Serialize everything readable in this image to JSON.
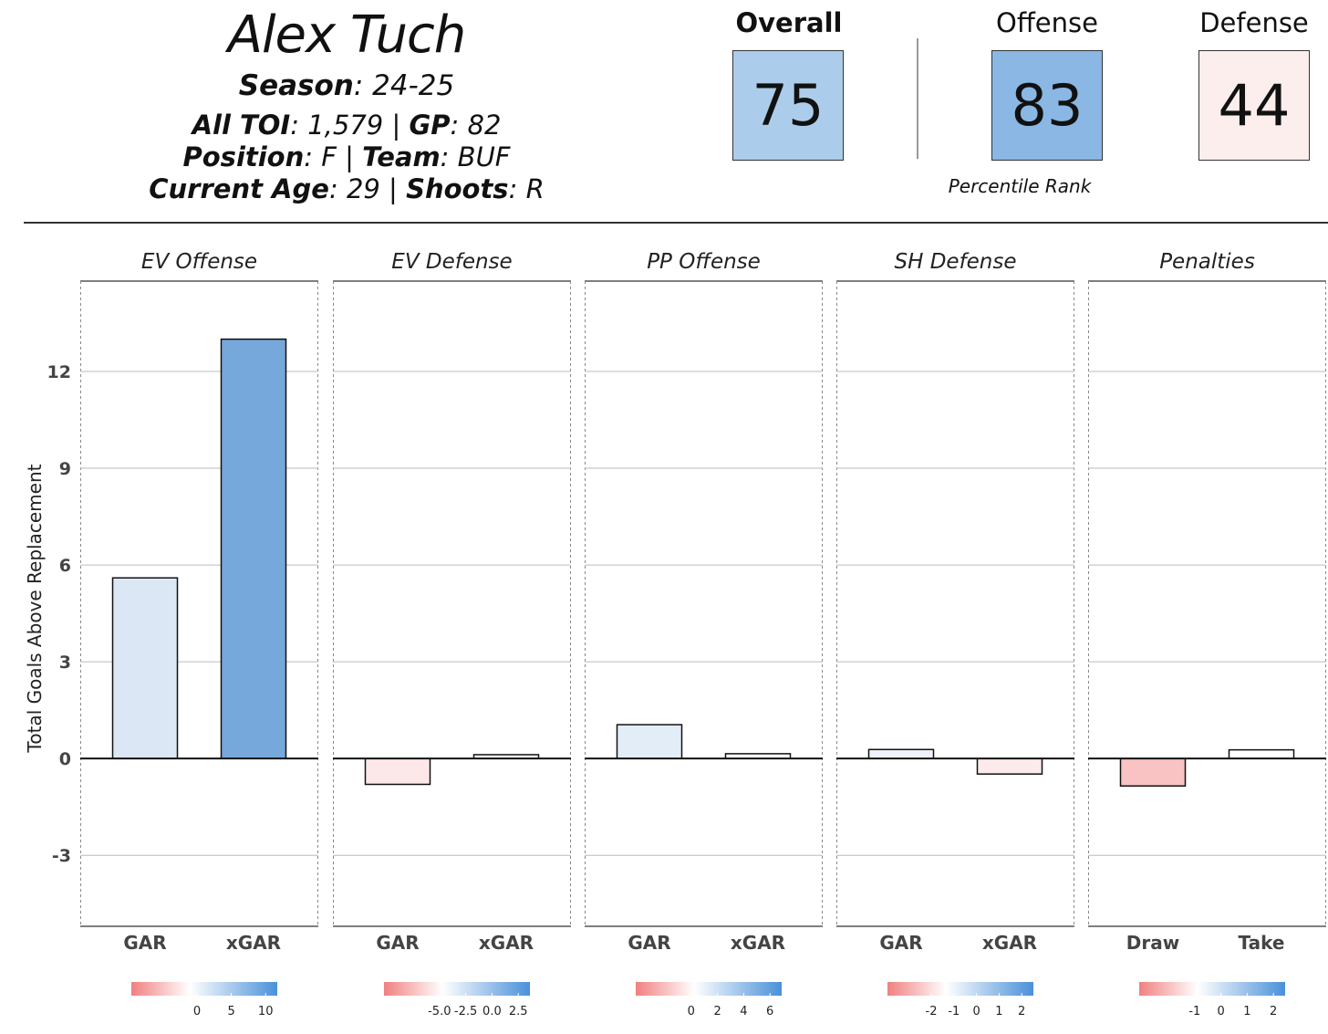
{
  "header": {
    "player_name": "Alex Tuch",
    "season_label": "Season",
    "season_value": "24-25",
    "toi_label": "All TOI",
    "toi_value": "1,579",
    "gp_label": "GP",
    "gp_value": "82",
    "position_label": "Position",
    "position_value": "F",
    "team_label": "Team",
    "team_value": "BUF",
    "age_label": "Current Age",
    "age_value": "29",
    "shoots_label": "Shoots",
    "shoots_value": "R"
  },
  "ranks": {
    "overall": {
      "label": "Overall",
      "value": "75",
      "color": "#abcdeb"
    },
    "offense": {
      "label": "Offense",
      "value": "83",
      "color": "#8ab7e3"
    },
    "defense": {
      "label": "Defense",
      "value": "44",
      "color": "#fbeeed"
    },
    "caption": "Percentile Rank"
  },
  "colors": {
    "negative": "#f08080",
    "neutral": "#ffffff",
    "positive": "#4a90d9"
  },
  "chart_data": {
    "type": "bar",
    "ylabel": "Total Goals Above Replacement",
    "ylim": [
      -5.2,
      14.8
    ],
    "yticks": [
      -3,
      0,
      3,
      6,
      9,
      12
    ],
    "grid": true,
    "panels": [
      {
        "title": "EV Offense",
        "categories": [
          "GAR",
          "xGAR"
        ],
        "values": [
          5.6,
          13.0
        ],
        "colors": [
          "#dbe7f5",
          "#76a8db"
        ],
        "legend_ticks": [
          "0",
          "5",
          "10"
        ]
      },
      {
        "title": "EV Defense",
        "categories": [
          "GAR",
          "xGAR"
        ],
        "values": [
          -0.8,
          0.12
        ],
        "colors": [
          "#fce8e8",
          "#ffffff"
        ],
        "legend_ticks": [
          "-5.0",
          "-2.5",
          "0.0",
          "2.5"
        ]
      },
      {
        "title": "PP Offense",
        "categories": [
          "GAR",
          "xGAR"
        ],
        "values": [
          1.05,
          0.15
        ],
        "colors": [
          "#e3edf8",
          "#fbfdff"
        ],
        "legend_ticks": [
          "0",
          "2",
          "4",
          "6"
        ]
      },
      {
        "title": "SH Defense",
        "categories": [
          "GAR",
          "xGAR"
        ],
        "values": [
          0.28,
          -0.48
        ],
        "colors": [
          "#eef3fb",
          "#fdeaea"
        ],
        "legend_ticks": [
          "-2",
          "-1",
          "0",
          "1",
          "2"
        ]
      },
      {
        "title": "Penalties",
        "categories": [
          "Draw",
          "Take"
        ],
        "values": [
          -0.85,
          0.27
        ],
        "colors": [
          "#f8c3c2",
          "#ffffff"
        ],
        "legend_ticks": [
          "-1",
          "0",
          "1",
          "2"
        ]
      }
    ]
  }
}
